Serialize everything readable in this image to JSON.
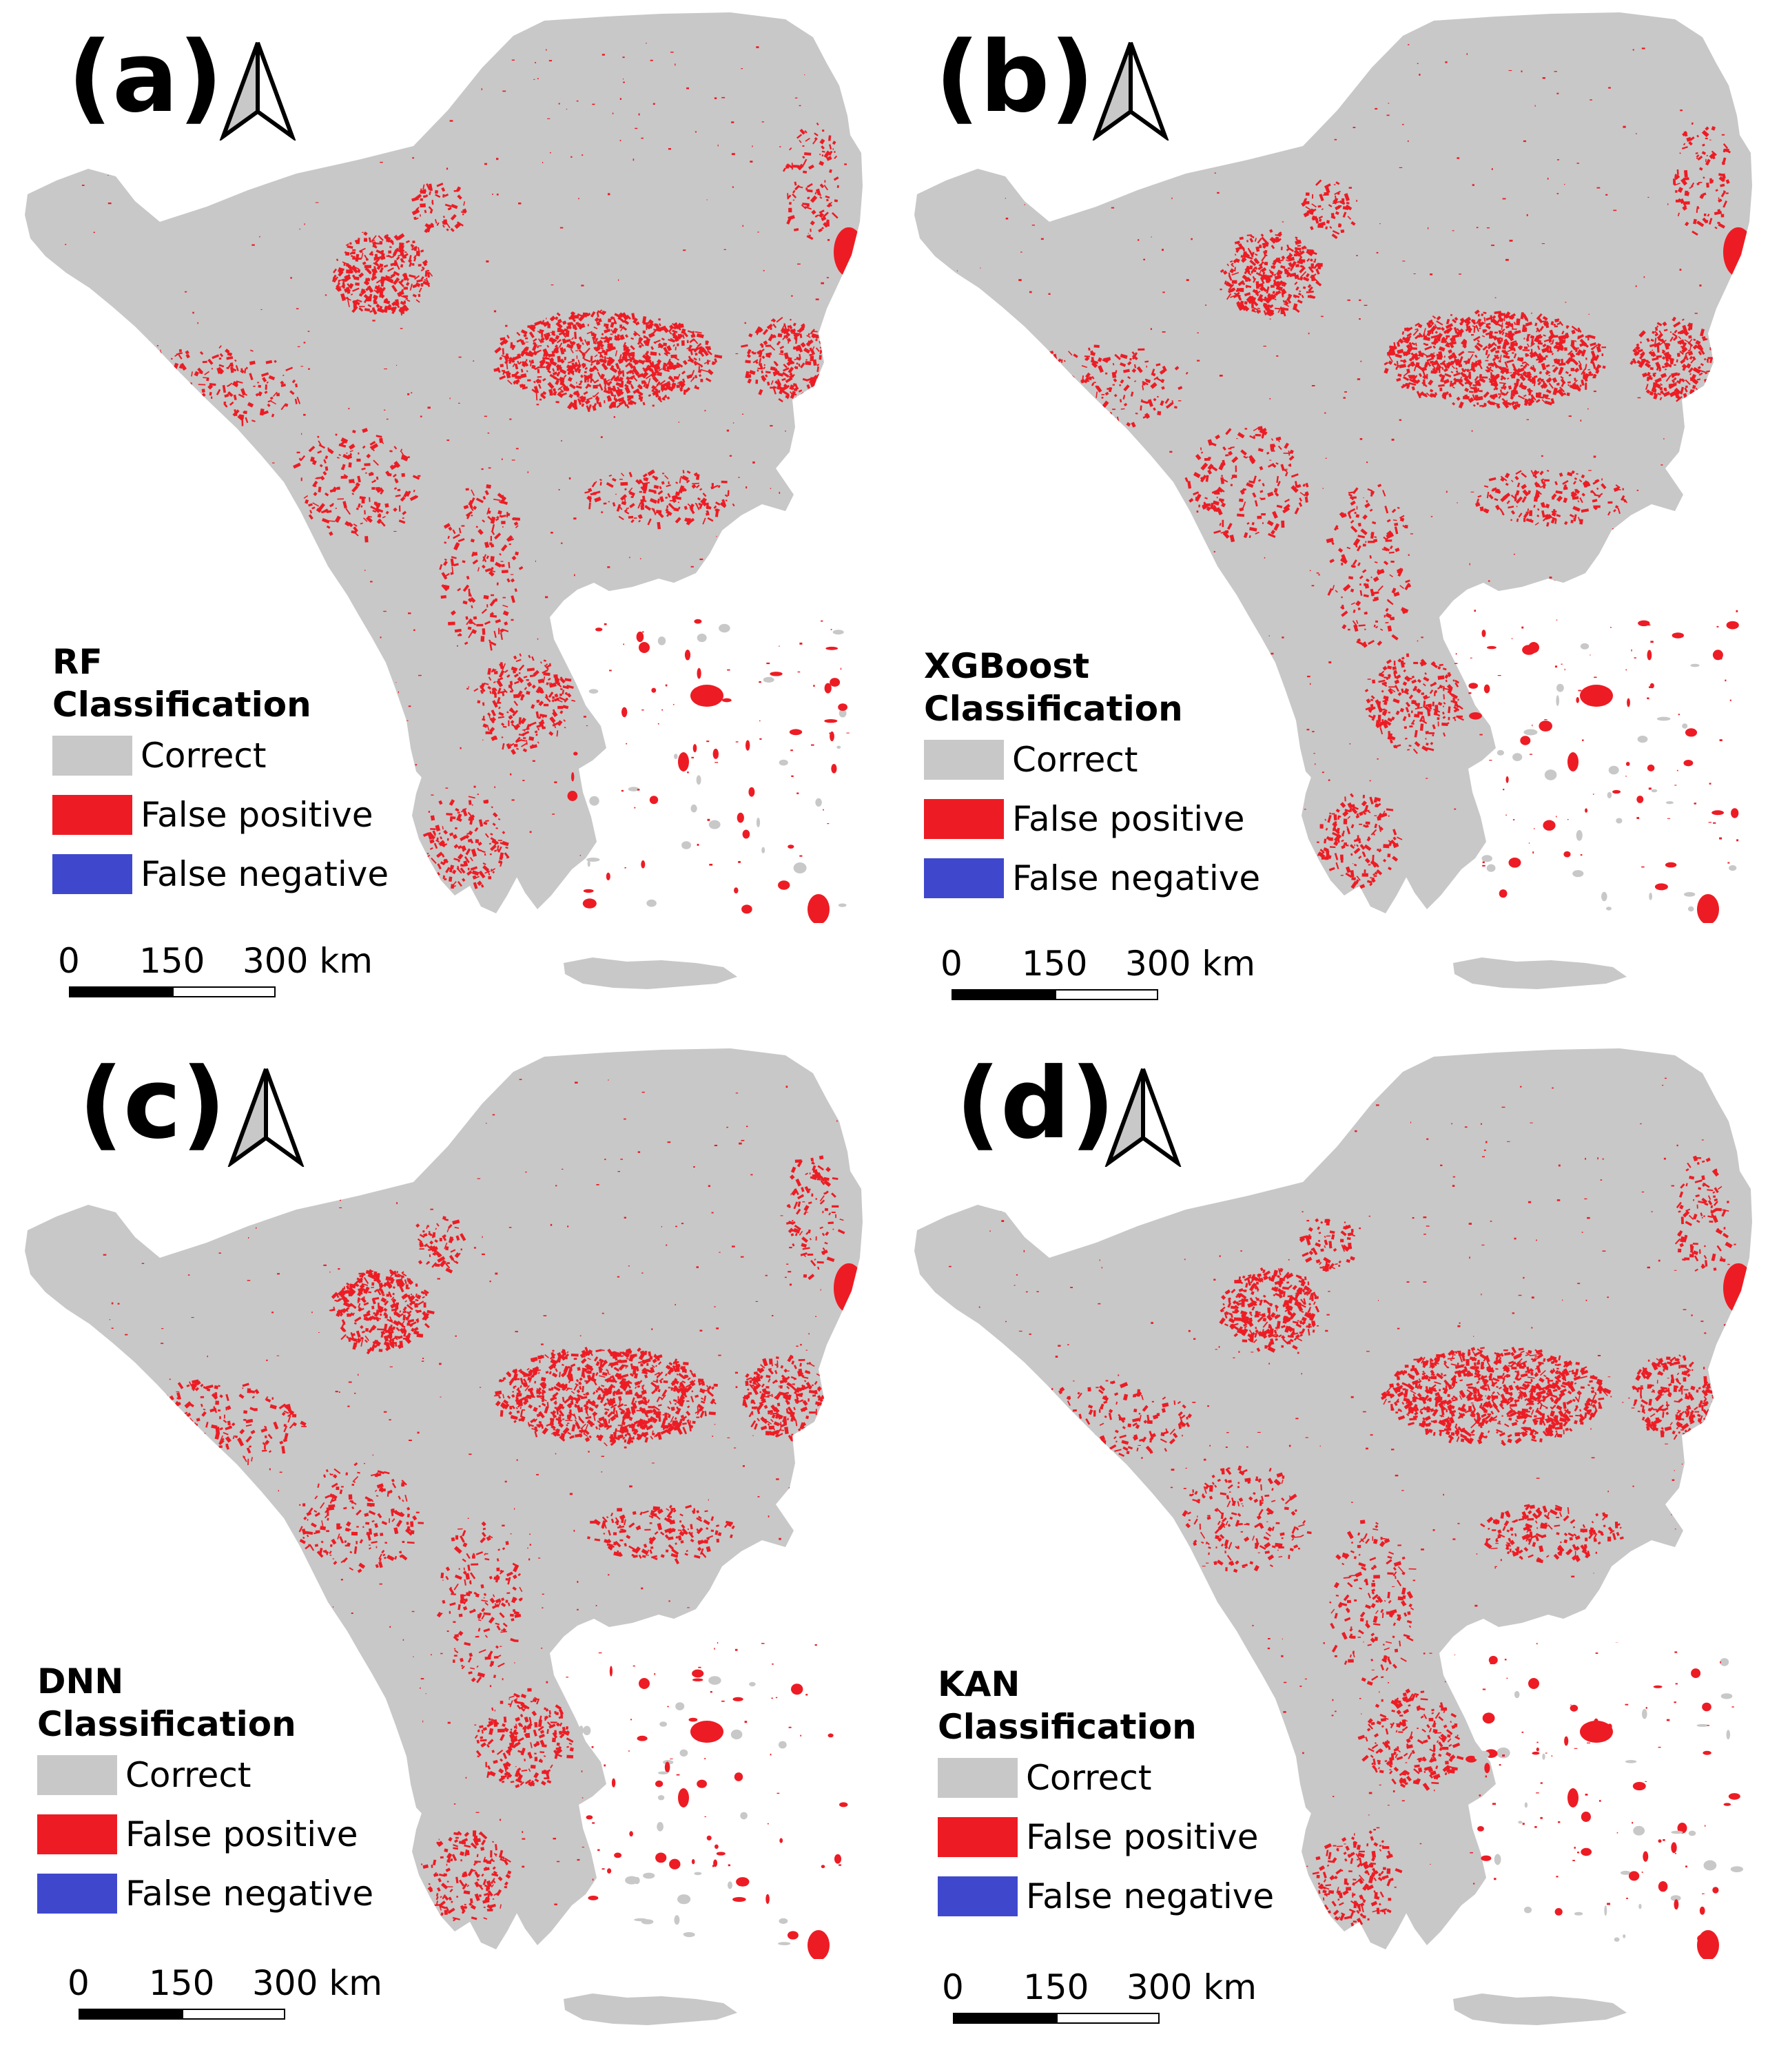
{
  "panels": [
    {
      "label": "(a)",
      "model": "RF",
      "legend_title": "Classification",
      "legend": [
        "Correct",
        "False positive",
        "False negative"
      ],
      "scale": [
        "0",
        "150",
        "300 km"
      ]
    },
    {
      "label": "(b)",
      "model": "XGBoost",
      "legend_title": "Classification",
      "legend": [
        "Correct",
        "False positive",
        "False negative"
      ],
      "scale": [
        "0",
        "150",
        "300 km"
      ]
    },
    {
      "label": "(c)",
      "model": "DNN",
      "legend_title": "Classification",
      "legend": [
        "Correct",
        "False positive",
        "False negative"
      ],
      "scale": [
        "0",
        "150",
        "300 km"
      ]
    },
    {
      "label": "(d)",
      "model": "KAN",
      "legend_title": "Classification",
      "legend": [
        "Correct",
        "False positive",
        "False negative"
      ],
      "scale": [
        "0",
        "150",
        "300 km"
      ]
    }
  ],
  "colors": {
    "correct": "#c8c8c8",
    "false_positive": "#ed1c24",
    "false_negative": "#3f48cc"
  },
  "icons": {
    "north_arrow": "north-arrow-icon"
  }
}
